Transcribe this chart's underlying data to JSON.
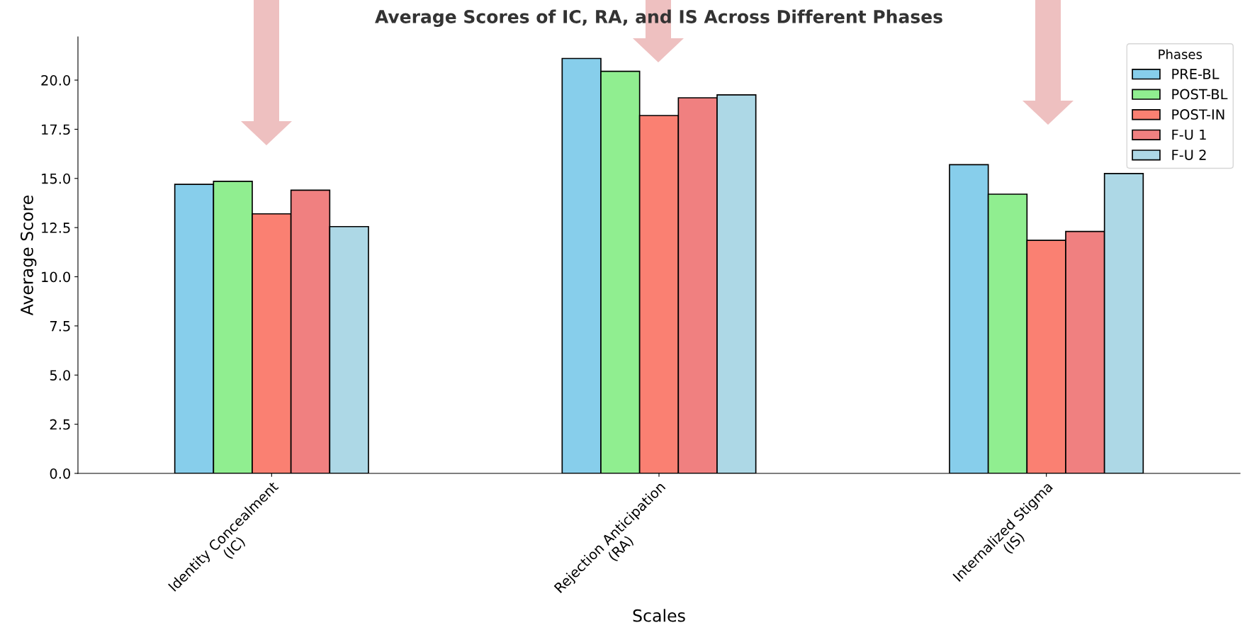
{
  "chart_data": {
    "type": "bar",
    "title": "Average Scores of IC, RA, and IS Across Different Phases",
    "xlabel": "Scales",
    "ylabel": "Average Score",
    "legend_title": "Phases",
    "legend": "top right",
    "grid": false,
    "categories": [
      "Identity Concealment\n(IC)",
      "Rejection Anticipation\n(RA)",
      "Internalized Stigma\n(IS)"
    ],
    "ylim": [
      0,
      22.2
    ],
    "yticks": [
      {
        "value": 0,
        "label": "0.0"
      },
      {
        "value": 2.5,
        "label": "2.5"
      },
      {
        "value": 5,
        "label": "5.0"
      },
      {
        "value": 7.5,
        "label": "7.5"
      },
      {
        "value": 10,
        "label": "10.0"
      },
      {
        "value": 12.5,
        "label": "12.5"
      },
      {
        "value": 15,
        "label": "15.0"
      },
      {
        "value": 17.5,
        "label": "17.5"
      },
      {
        "value": 20,
        "label": "20.0"
      }
    ],
    "series": [
      {
        "name": "PRE-BL",
        "color": "#87ceeb",
        "values": [
          14.7,
          21.1,
          15.7
        ]
      },
      {
        "name": "POST-BL",
        "color": "#90ee90",
        "values": [
          14.85,
          20.45,
          14.2
        ]
      },
      {
        "name": "POST-IN",
        "color": "#fa8072",
        "values": [
          13.2,
          18.2,
          11.85
        ]
      },
      {
        "name": "F-U 1",
        "color": "#f08080",
        "values": [
          14.4,
          19.1,
          12.3
        ]
      },
      {
        "name": "F-U 2",
        "color": "#add8e6",
        "values": [
          12.55,
          19.25,
          15.25
        ]
      }
    ]
  }
}
